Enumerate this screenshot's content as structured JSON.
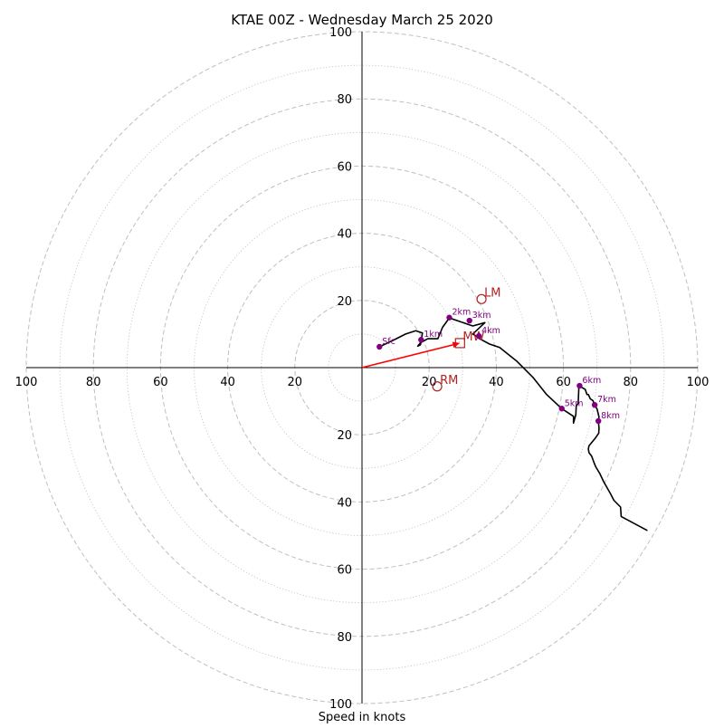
{
  "chart_data": {
    "type": "hodograph",
    "title": "KTAE 00Z - Wednesday March 25 2020",
    "xlabel": "Speed in knots",
    "ylabel": "",
    "xlim": [
      -100,
      100
    ],
    "ylim": [
      -100,
      100
    ],
    "rings": {
      "major": [
        20,
        40,
        60,
        80,
        100
      ],
      "minor": [
        10,
        30,
        50,
        70,
        90
      ]
    },
    "tick_labels": {
      "x_neg": [
        "100",
        "80",
        "60",
        "40",
        "20"
      ],
      "x_pos": [
        "20",
        "40",
        "60",
        "80",
        "100"
      ],
      "y_pos": [
        "20",
        "40",
        "60",
        "80",
        "100"
      ],
      "y_neg": [
        "20",
        "40",
        "60",
        "80",
        "100"
      ]
    },
    "hodograph": [
      [
        5.2,
        6.2
      ],
      [
        10,
        8.5
      ],
      [
        13,
        10
      ],
      [
        16,
        11
      ],
      [
        18,
        10.3
      ],
      [
        17.4,
        6.8
      ],
      [
        16.6,
        6.4
      ],
      [
        17.4,
        7.4
      ],
      [
        19.6,
        8.6
      ],
      [
        22.6,
        8.6
      ],
      [
        24,
        12
      ],
      [
        26,
        14.8
      ],
      [
        33,
        12.4
      ],
      [
        36.6,
        13.4
      ],
      [
        33,
        10
      ],
      [
        34,
        9.4
      ],
      [
        35,
        8.6
      ],
      [
        38,
        7
      ],
      [
        41,
        6
      ],
      [
        46,
        2
      ],
      [
        51,
        -3
      ],
      [
        55,
        -8
      ],
      [
        59.5,
        -12.2
      ],
      [
        63,
        -14.5
      ],
      [
        63,
        -16.5
      ],
      [
        63.7,
        -14
      ],
      [
        63.8,
        -11.5
      ],
      [
        64.4,
        -10.6
      ],
      [
        64.6,
        -5.4
      ],
      [
        66.5,
        -6.5
      ],
      [
        67,
        -8
      ],
      [
        67.4,
        -8
      ],
      [
        68,
        -9.3
      ],
      [
        68.8,
        -9.8
      ],
      [
        69.3,
        -11.3
      ],
      [
        70,
        -12.3
      ],
      [
        70.6,
        -14.7
      ],
      [
        70.4,
        -16
      ],
      [
        70.6,
        -18
      ],
      [
        70.5,
        -19.5
      ],
      [
        69.5,
        -21
      ],
      [
        68.5,
        -22.2
      ],
      [
        67.6,
        -23.3
      ],
      [
        67.4,
        -24.2
      ],
      [
        67.6,
        -25.3
      ],
      [
        68.4,
        -26.4
      ],
      [
        69,
        -28
      ],
      [
        69.6,
        -29.5
      ],
      [
        70.8,
        -31.5
      ],
      [
        72,
        -34
      ],
      [
        74,
        -37.5
      ],
      [
        75,
        -39.5
      ],
      [
        77,
        -41.5
      ],
      [
        77.2,
        -44.3
      ],
      [
        85,
        -48.5
      ]
    ],
    "height_markers": [
      {
        "label": "Sfc",
        "u": 5.2,
        "v": 6.2
      },
      {
        "label": "1km",
        "u": 17.6,
        "v": 8.3
      },
      {
        "label": "2km",
        "u": 26,
        "v": 14.9
      },
      {
        "label": "3km",
        "u": 32,
        "v": 14
      },
      {
        "label": "4km",
        "u": 34.8,
        "v": 9.4
      },
      {
        "label": "5km",
        "u": 59.5,
        "v": -12.2
      },
      {
        "label": "6km",
        "u": 64.8,
        "v": -5.4
      },
      {
        "label": "7km",
        "u": 69.3,
        "v": -11.1
      },
      {
        "label": "8km",
        "u": 70.4,
        "v": -15.9
      }
    ],
    "storm_motion": [
      {
        "label": "LM",
        "u": 35.6,
        "v": 20.4,
        "marker": "circle"
      },
      {
        "label": "MW",
        "u": 29.2,
        "v": 7.3,
        "marker": "square"
      },
      {
        "label": "RM",
        "u": 22.4,
        "v": -5.6,
        "marker": "circle"
      }
    ],
    "mean_wind_vector": {
      "u": 29.2,
      "v": 7.3
    },
    "colors": {
      "hodograph_line": "#000000",
      "height_marker": "#800080",
      "storm_motion": "#b22222",
      "vector": "#ff0000",
      "ring": "#bfbfbf",
      "axis": "#000000"
    }
  }
}
